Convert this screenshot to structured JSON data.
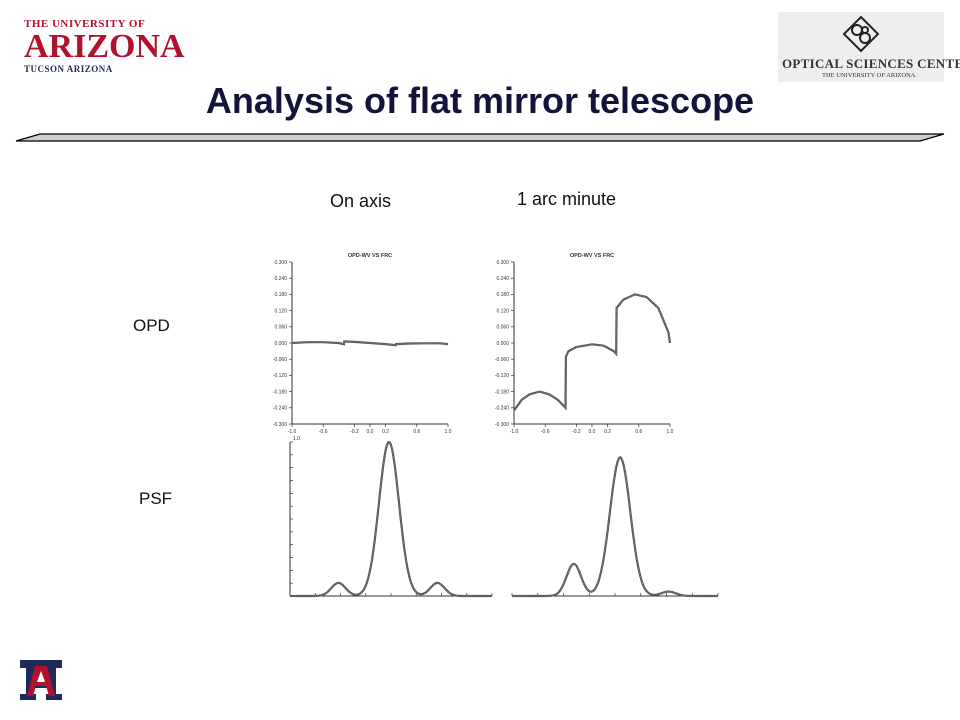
{
  "logos": {
    "ua": {
      "line1": "THE UNIVERSITY OF",
      "line2": "ARIZONA",
      "line3": "TUCSON ARIZONA",
      "color": "#b0122e"
    },
    "osc": {
      "name": "OPTICAL SCIENCES CENTER",
      "sub": "THE UNIVERSITY OF ARIZONA"
    }
  },
  "title": "Analysis of flat mirror telescope",
  "columns": {
    "on_axis": "On axis",
    "off_axis": "1 arc minute"
  },
  "rows": {
    "opd": "OPD",
    "psf": "PSF"
  },
  "opd_plot": {
    "title": "OPD-WV VS FRC",
    "y_ticks": [
      "0.300",
      "0.240",
      "0.180",
      "0.120",
      "0.060",
      "0.000",
      "-0.060",
      "-0.120",
      "-0.180",
      "-0.240",
      "-0.300"
    ],
    "x_ticks": [
      "-1.0",
      "-0.6",
      "-0.2",
      "0.0",
      "0.2",
      "0.6",
      "1.0"
    ]
  },
  "psf_plot": {
    "y_label": "1.0"
  },
  "chart_data": [
    {
      "type": "line",
      "title": "OPD-WV VS FRC",
      "panel": "On axis OPD",
      "x": [
        -1.0,
        -0.8,
        -0.6,
        -0.4,
        -0.333,
        -0.33,
        -0.2,
        0.0,
        0.2,
        0.33,
        0.333,
        0.5,
        0.7,
        0.9,
        1.0
      ],
      "y": [
        0.0,
        0.003,
        0.003,
        0.0,
        -0.005,
        0.006,
        0.004,
        0.0,
        -0.004,
        -0.008,
        -0.004,
        -0.002,
        -0.001,
        -0.001,
        -0.004
      ],
      "ylim": [
        -0.3,
        0.3
      ],
      "xlim": [
        -1.0,
        1.0
      ]
    },
    {
      "type": "line",
      "title": "OPD-WV VS FRC",
      "panel": "1 arc minute OPD",
      "x": [
        -1.0,
        -0.9,
        -0.8,
        -0.67,
        -0.55,
        -0.44,
        -0.34,
        -0.335,
        -0.3,
        -0.2,
        0.0,
        0.15,
        0.28,
        0.31,
        0.315,
        0.4,
        0.55,
        0.7,
        0.85,
        0.98,
        1.0
      ],
      "y": [
        -0.25,
        -0.21,
        -0.19,
        -0.18,
        -0.19,
        -0.21,
        -0.24,
        -0.05,
        -0.03,
        -0.015,
        -0.005,
        -0.01,
        -0.03,
        -0.04,
        0.13,
        0.16,
        0.18,
        0.17,
        0.13,
        0.04,
        0.0
      ],
      "ylim": [
        -0.3,
        0.3
      ],
      "xlim": [
        -1.0,
        1.0
      ]
    },
    {
      "type": "line",
      "panel": "On axis PSF",
      "x": [
        -1.0,
        -0.8,
        -0.6,
        -0.5,
        -0.4,
        -0.3,
        -0.1,
        0.0,
        0.1,
        0.3,
        0.4,
        0.5,
        0.6,
        0.8,
        1.0
      ],
      "y": [
        0.0,
        0.0,
        0.02,
        0.08,
        0.02,
        0.05,
        0.5,
        1.0,
        0.5,
        0.05,
        0.02,
        0.08,
        0.02,
        0.0,
        0.0
      ],
      "ylim": [
        0,
        1.0
      ]
    },
    {
      "type": "line",
      "panel": "1 arc minute PSF",
      "x": [
        -1.0,
        -0.8,
        -0.6,
        -0.5,
        -0.4,
        -0.3,
        -0.1,
        0.0,
        0.1,
        0.3,
        0.4,
        0.5,
        0.6,
        0.8,
        1.0
      ],
      "y": [
        0.0,
        0.0,
        0.05,
        0.2,
        0.05,
        0.05,
        0.5,
        0.96,
        0.5,
        0.05,
        0.02,
        0.03,
        0.01,
        0.0,
        0.0
      ],
      "ylim": [
        0,
        1.0
      ]
    }
  ]
}
